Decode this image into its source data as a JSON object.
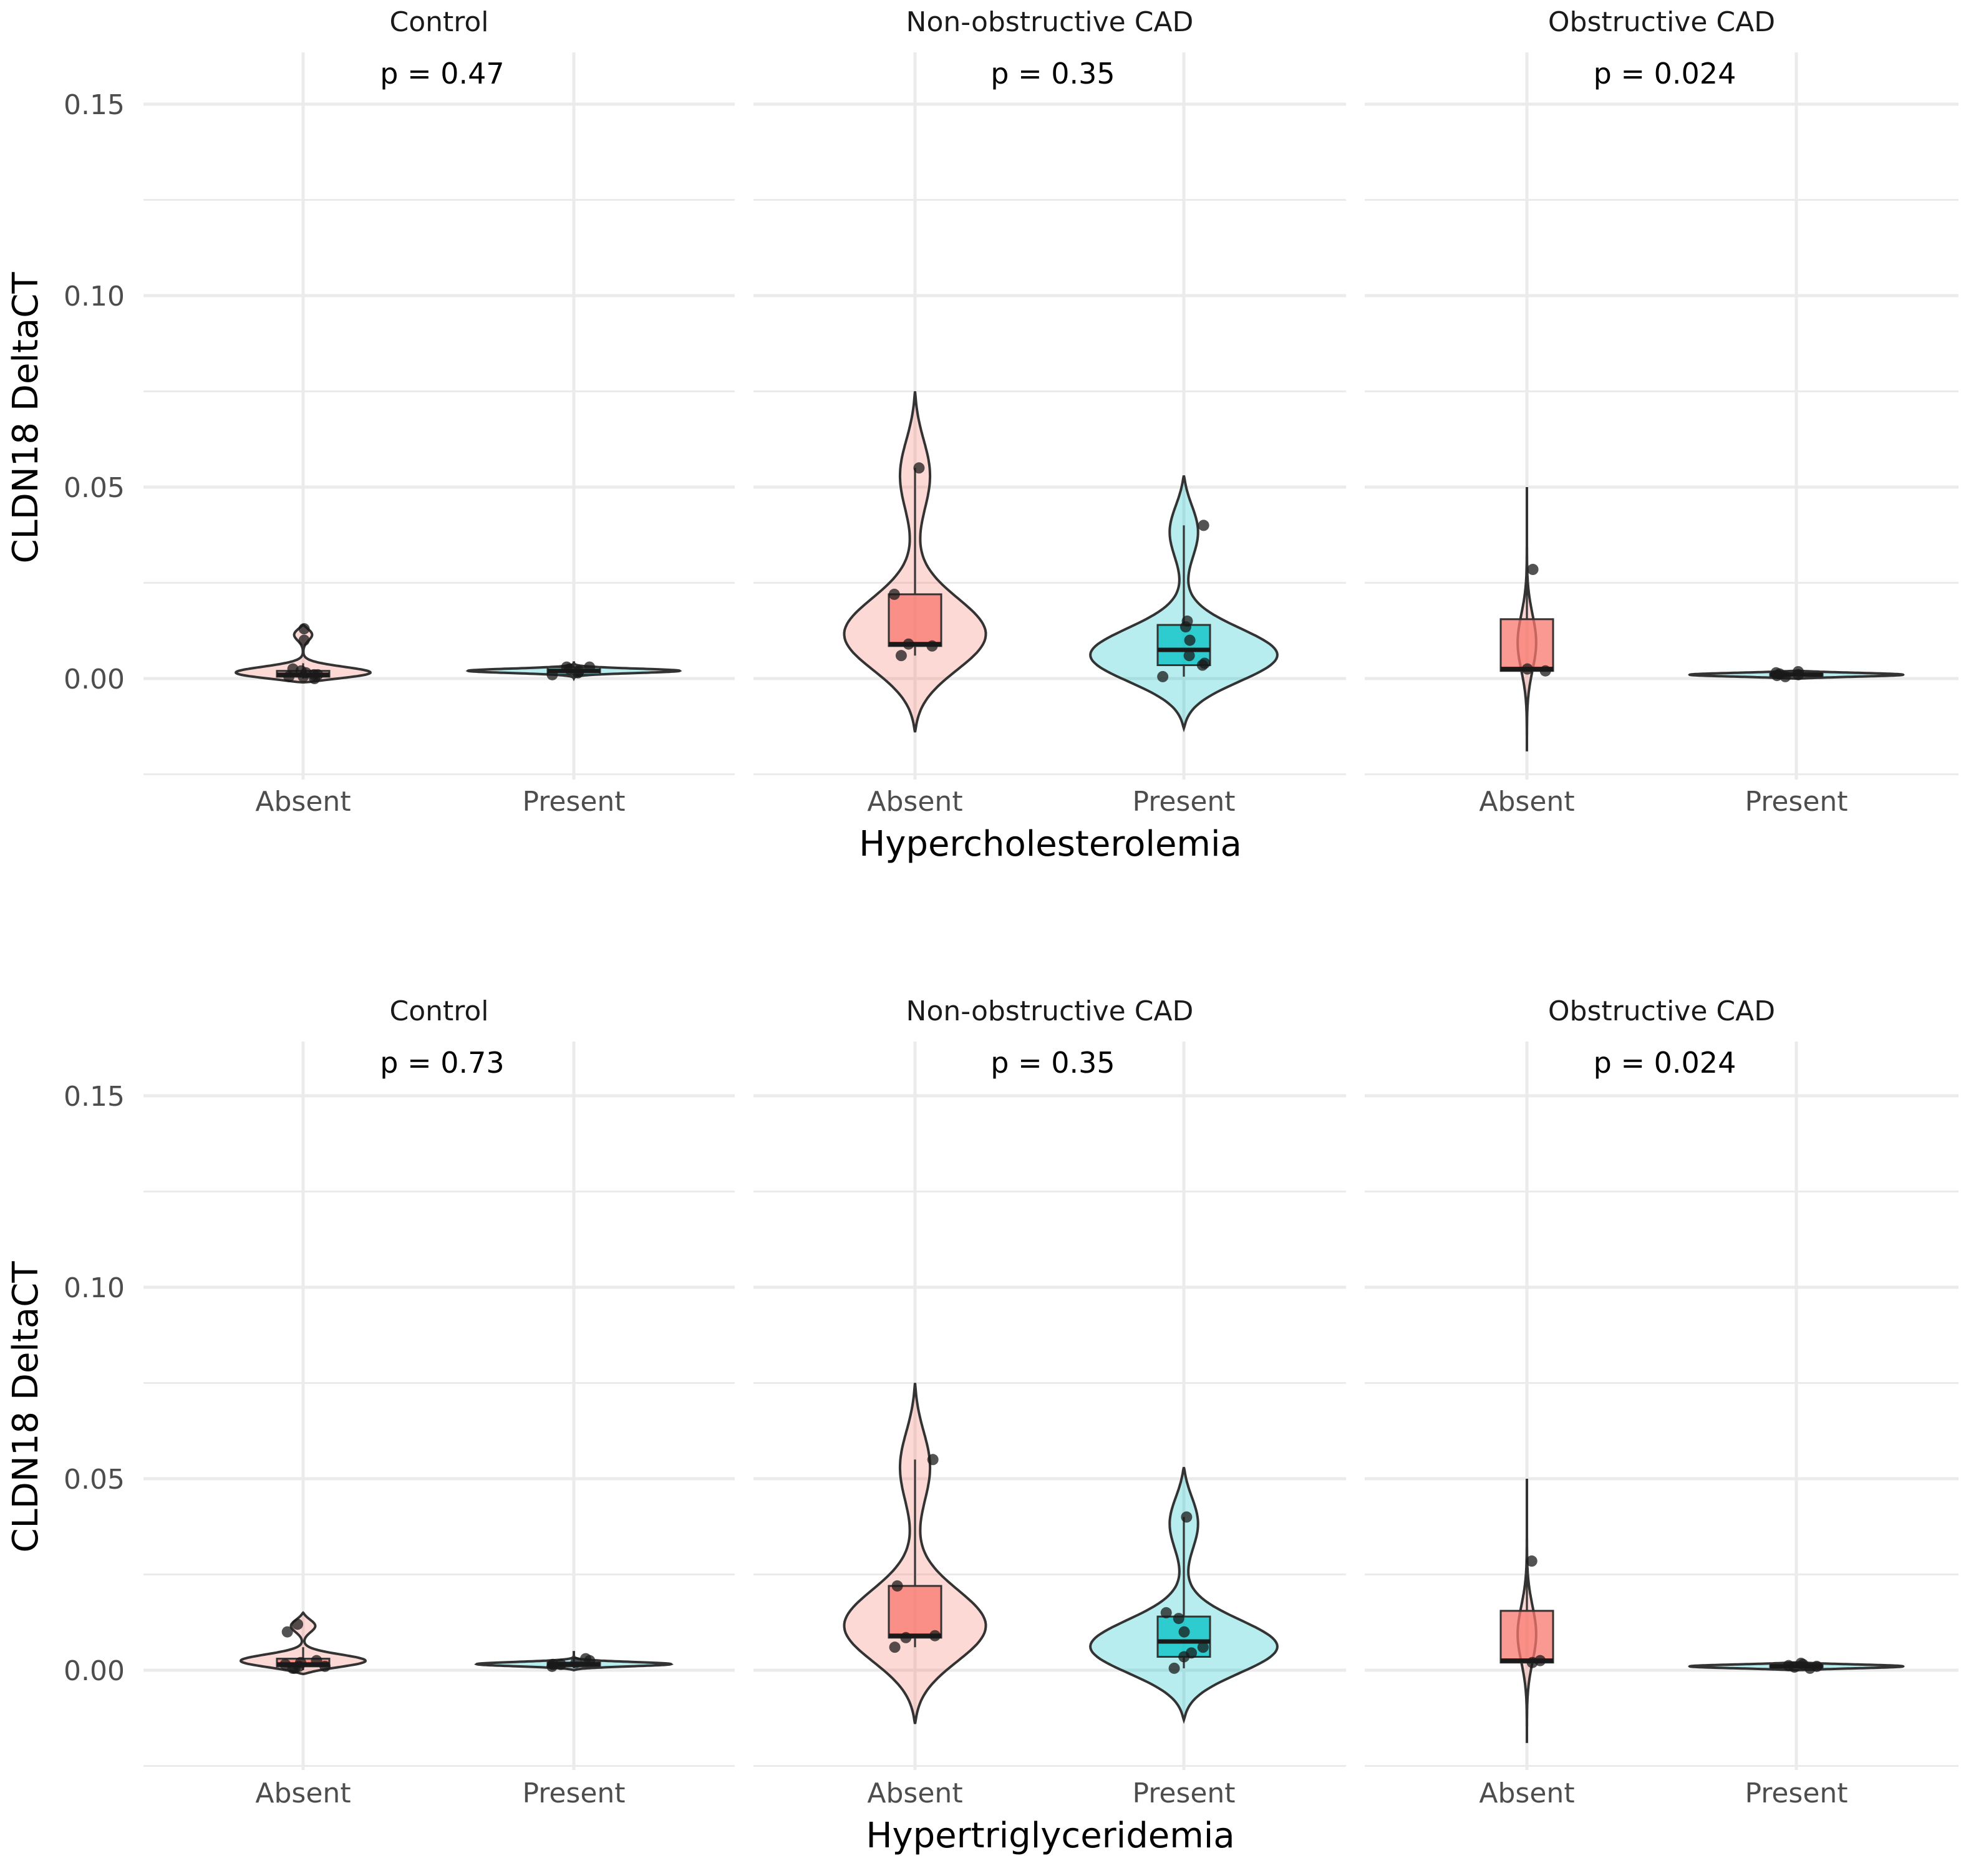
{
  "chart_data": [
    {
      "type": "violin",
      "title": "",
      "xlabel": "Hypercholesterolemia",
      "ylabel": "CLDN18 DeltaCT",
      "ylim": [
        -0.025,
        0.16
      ],
      "yticks": [
        "0.00",
        "0.05",
        "0.10",
        "0.15"
      ],
      "categories": [
        "Absent",
        "Present"
      ],
      "colors": {
        "Absent": "#f8766d",
        "Present": "#00bfc4"
      },
      "facets": [
        {
          "name": "Control",
          "p_label": "p = 0.47",
          "groups": [
            {
              "category": "Absent",
              "box": {
                "q1": 0.0005,
                "median": 0.001,
                "q3": 0.002,
                "lower": 0.0,
                "upper": 0.004
              },
              "violin": {
                "ymin": -0.001,
                "ymax": 0.014,
                "bumps": [
                  {
                    "y": 0.001,
                    "w": 0.9
                  },
                  {
                    "y": 0.012,
                    "w": 0.12
                  }
                ]
              },
              "points": [
                0.0005,
                0.001,
                0.0015,
                0.002,
                0.0025,
                0.001,
                0.0,
                0.0005,
                0.01,
                0.013
              ]
            },
            {
              "category": "Present",
              "box": {
                "q1": 0.001,
                "median": 0.002,
                "q3": 0.003,
                "lower": 0.0005,
                "upper": 0.0035
              },
              "violin": {
                "ymin": 0.0,
                "ymax": 0.0045,
                "bumps": [
                  {
                    "y": 0.002,
                    "w": 0.9
                  }
                ]
              },
              "points": [
                0.001,
                0.0015,
                0.002,
                0.0025,
                0.003,
                0.003
              ]
            }
          ]
        },
        {
          "name": "Non-obstructive CAD",
          "p_label": "p = 0.35",
          "groups": [
            {
              "category": "Absent",
              "box": {
                "q1": 0.0085,
                "median": 0.009,
                "q3": 0.022,
                "lower": 0.006,
                "upper": 0.055
              },
              "violin": {
                "ymin": -0.014,
                "ymax": 0.075,
                "bumps": [
                  {
                    "y": 0.01,
                    "w": 0.7
                  },
                  {
                    "y": 0.055,
                    "w": 0.16
                  }
                ]
              },
              "points": [
                0.055,
                0.022,
                0.009,
                0.0085,
                0.006
              ]
            },
            {
              "category": "Present",
              "box": {
                "q1": 0.0035,
                "median": 0.0075,
                "q3": 0.014,
                "lower": 0.0005,
                "upper": 0.04
              },
              "violin": {
                "ymin": -0.013,
                "ymax": 0.053,
                "bumps": [
                  {
                    "y": 0.005,
                    "w": 0.92
                  },
                  {
                    "y": 0.04,
                    "w": 0.16
                  }
                ]
              },
              "points": [
                0.04,
                0.015,
                0.0135,
                0.01,
                0.006,
                0.004,
                0.0035,
                0.0005
              ]
            }
          ]
        },
        {
          "name": "Obstructive CAD",
          "p_label": "p = 0.024",
          "groups": [
            {
              "category": "Absent",
              "box": {
                "q1": 0.002,
                "median": 0.0025,
                "q3": 0.0155,
                "lower": 0.002,
                "upper": 0.0285
              },
              "violin": {
                "ymin": -0.019,
                "ymax": 0.05,
                "bumps": [
                  {
                    "y": 0.009,
                    "w": 0.08
                  }
                ]
              },
              "points": [
                0.0285,
                0.0025,
                0.002
              ]
            },
            {
              "category": "Present",
              "box": {
                "q1": 0.0008,
                "median": 0.001,
                "q3": 0.0015,
                "lower": 0.0005,
                "upper": 0.0018
              },
              "violin": {
                "ymin": 0.0,
                "ymax": 0.002,
                "bumps": [
                  {
                    "y": 0.001,
                    "w": 0.9
                  }
                ]
              },
              "points": [
                0.0012,
                0.0008,
                0.0015,
                0.0005,
                0.0018,
                0.001
              ]
            }
          ]
        }
      ]
    },
    {
      "type": "violin",
      "title": "",
      "xlabel": "Hypertriglyceridemia",
      "ylabel": "CLDN18 DeltaCT",
      "ylim": [
        -0.025,
        0.16
      ],
      "yticks": [
        "0.00",
        "0.05",
        "0.10",
        "0.15"
      ],
      "categories": [
        "Absent",
        "Present"
      ],
      "colors": {
        "Absent": "#f8766d",
        "Present": "#00bfc4"
      },
      "facets": [
        {
          "name": "Control",
          "p_label": "p = 0.73",
          "groups": [
            {
              "category": "Absent",
              "box": {
                "q1": 0.001,
                "median": 0.0015,
                "q3": 0.003,
                "lower": 0.0,
                "upper": 0.006
              },
              "violin": {
                "ymin": -0.001,
                "ymax": 0.015,
                "bumps": [
                  {
                    "y": 0.002,
                    "w": 0.72
                  },
                  {
                    "y": 0.012,
                    "w": 0.14
                  }
                ]
              },
              "points": [
                0.0005,
                0.001,
                0.0015,
                0.002,
                0.0025,
                0.001,
                0.0005,
                0.01,
                0.012
              ]
            },
            {
              "category": "Present",
              "box": {
                "q1": 0.001,
                "median": 0.0015,
                "q3": 0.002,
                "lower": 0.0005,
                "upper": 0.003
              },
              "violin": {
                "ymin": 0.0,
                "ymax": 0.005,
                "bumps": [
                  {
                    "y": 0.0015,
                    "w": 0.92
                  }
                ]
              },
              "points": [
                0.001,
                0.0015,
                0.002,
                0.0025,
                0.003,
                0.0015
              ]
            }
          ]
        },
        {
          "name": "Non-obstructive CAD",
          "p_label": "p = 0.35",
          "groups": [
            {
              "category": "Absent",
              "box": {
                "q1": 0.0085,
                "median": 0.009,
                "q3": 0.022,
                "lower": 0.006,
                "upper": 0.055
              },
              "violin": {
                "ymin": -0.014,
                "ymax": 0.075,
                "bumps": [
                  {
                    "y": 0.01,
                    "w": 0.7
                  },
                  {
                    "y": 0.055,
                    "w": 0.16
                  }
                ]
              },
              "points": [
                0.055,
                0.022,
                0.009,
                0.0085,
                0.006
              ]
            },
            {
              "category": "Present",
              "box": {
                "q1": 0.0035,
                "median": 0.0075,
                "q3": 0.014,
                "lower": 0.0005,
                "upper": 0.04
              },
              "violin": {
                "ymin": -0.013,
                "ymax": 0.053,
                "bumps": [
                  {
                    "y": 0.005,
                    "w": 0.92
                  },
                  {
                    "y": 0.04,
                    "w": 0.16
                  }
                ]
              },
              "points": [
                0.04,
                0.015,
                0.0135,
                0.01,
                0.006,
                0.0045,
                0.0035,
                0.0005
              ]
            }
          ]
        },
        {
          "name": "Obstructive CAD",
          "p_label": "p = 0.024",
          "groups": [
            {
              "category": "Absent",
              "box": {
                "q1": 0.002,
                "median": 0.0025,
                "q3": 0.0155,
                "lower": 0.002,
                "upper": 0.0285
              },
              "violin": {
                "ymin": -0.019,
                "ymax": 0.05,
                "bumps": [
                  {
                    "y": 0.009,
                    "w": 0.08
                  }
                ]
              },
              "points": [
                0.0285,
                0.0025,
                0.002
              ]
            },
            {
              "category": "Present",
              "box": {
                "q1": 0.0008,
                "median": 0.001,
                "q3": 0.0015,
                "lower": 0.0005,
                "upper": 0.0018
              },
              "violin": {
                "ymin": 0.0,
                "ymax": 0.002,
                "bumps": [
                  {
                    "y": 0.001,
                    "w": 0.9
                  }
                ]
              },
              "points": [
                0.0012,
                0.0008,
                0.0015,
                0.0005,
                0.0018,
                0.001
              ]
            }
          ]
        }
      ]
    }
  ]
}
